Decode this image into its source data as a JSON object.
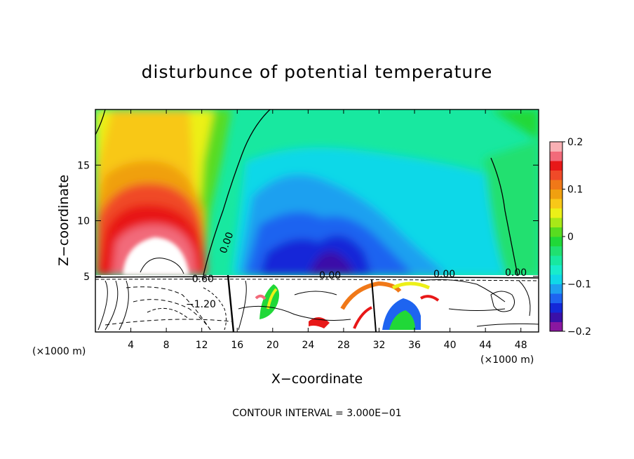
{
  "chart_data": {
    "type": "heatmap",
    "title": "disturbunce of potential temperature",
    "xlabel": "X−coordinate",
    "ylabel": "Z−coordinate",
    "x_unit_left": "(×1000 m)",
    "x_unit_right": "(×1000 m)",
    "xlim": [
      0,
      50
    ],
    "ylim": [
      0,
      20
    ],
    "xticks": [
      4,
      8,
      12,
      16,
      20,
      24,
      28,
      32,
      36,
      40,
      44,
      48
    ],
    "yticks": [
      5,
      10,
      15
    ],
    "footer": "CONTOUR INTERVAL = 3.000E−01",
    "contour_labels": [
      "0.00",
      "0.00",
      "−0.60",
      "−1.20",
      "0.00",
      "0.00"
    ],
    "colorbar": {
      "range": [
        -0.2,
        0.2
      ],
      "tick_labels": [
        "0.2",
        "0.1",
        "0",
        "−0.1",
        "−0.2"
      ],
      "tick_values": [
        0.2,
        0.1,
        0,
        -0.1,
        -0.2
      ],
      "colors": [
        "#8a17a0",
        "#3a10a8",
        "#1428d8",
        "#1e64f0",
        "#1ea0f0",
        "#10d8e8",
        "#18eccc",
        "#18e8a0",
        "#20e070",
        "#20d838",
        "#58dc20",
        "#a8e818",
        "#ecf018",
        "#f8c818",
        "#f0a010",
        "#f07818",
        "#f04a28",
        "#e81818",
        "#f26a7a",
        "#f8b0b4"
      ]
    },
    "grid": false,
    "legend_position": "right"
  }
}
